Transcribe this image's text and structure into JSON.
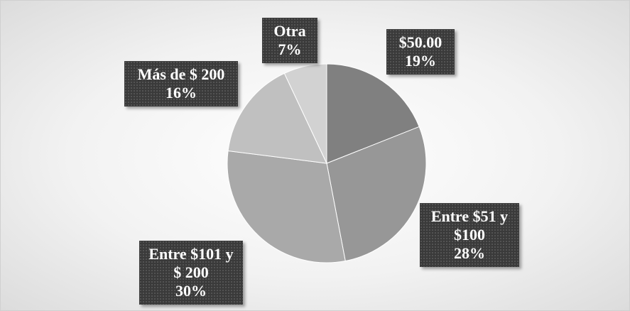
{
  "chart_data": {
    "type": "pie",
    "categories": [
      "$50.00",
      "Entre $51 y $100",
      "Entre $101 y $ 200",
      "Más de $ 200",
      "Otra"
    ],
    "values": [
      19,
      28,
      30,
      16,
      7
    ],
    "value_labels": [
      "19%",
      "28%",
      "30%",
      "16%",
      "7%"
    ],
    "colors": [
      "#808080",
      "#979797",
      "#a9a9a9",
      "#c0c0c0",
      "#d2d2d2"
    ]
  }
}
